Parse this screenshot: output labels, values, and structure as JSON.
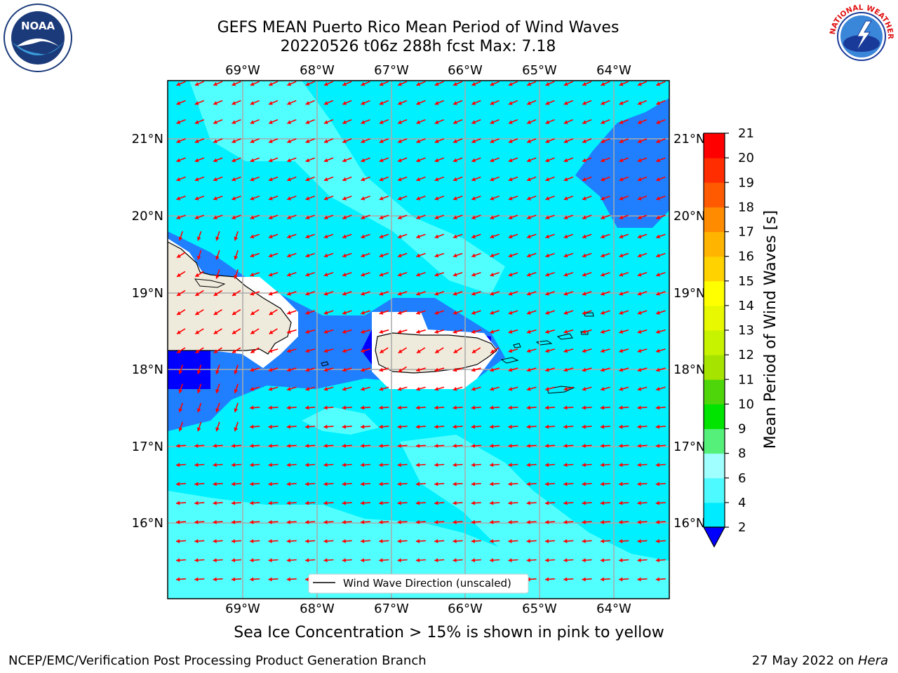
{
  "header": {
    "title_line1": "GEFS MEAN Puerto Rico Mean Period of Wind Waves",
    "title_line2": "20220526 t06z 288h fcst   Max: 7.18"
  },
  "logos": {
    "left": {
      "icon": "noaa-logo-icon",
      "text": "NOAA"
    },
    "right": {
      "icon": "nws-logo-icon",
      "text": "NATIONAL WEATHER SERVICE"
    }
  },
  "map": {
    "lon_labels": [
      "69°W",
      "68°W",
      "67°W",
      "66°W",
      "65°W",
      "64°W"
    ],
    "lat_labels": [
      "21°N",
      "20°N",
      "19°N",
      "18°N",
      "17°N",
      "16°N"
    ],
    "legend_label": "Wind Wave Direction (unscaled)",
    "arrow_color": "#ff0000",
    "land_color": "#efebdc",
    "ocean_colors": {
      "2-4": "#1f7fff",
      "4-6": "#00f0ff",
      "6-8": "#52ffff",
      "under-2": "#0000ff"
    }
  },
  "colorbar": {
    "label": "Mean Period of Wind Waves [s]",
    "ticks": [
      "2",
      "4",
      "6",
      "8",
      "9",
      "10",
      "11",
      "12",
      "13",
      "14",
      "15",
      "16",
      "17",
      "18",
      "19",
      "20",
      "21"
    ],
    "colors": [
      "#1e6eff",
      "#00ebff",
      "#4dfaff",
      "#a0ffff",
      "#55f07a",
      "#00e400",
      "#4fd60a",
      "#a6e400",
      "#c7f200",
      "#e8f800",
      "#ffff00",
      "#ffd200",
      "#ffb400",
      "#ff8c00",
      "#ff5a00",
      "#ff2d00",
      "#ff0000"
    ],
    "extend_color": "#0000ff"
  },
  "footer": {
    "caption": "Sea Ice Concentration > 15% is shown in pink to yellow",
    "left": "NCEP/EMC/Verification Post Processing Product Generation Branch",
    "right_date": "27 May 2022 on",
    "right_host": "Hera"
  }
}
